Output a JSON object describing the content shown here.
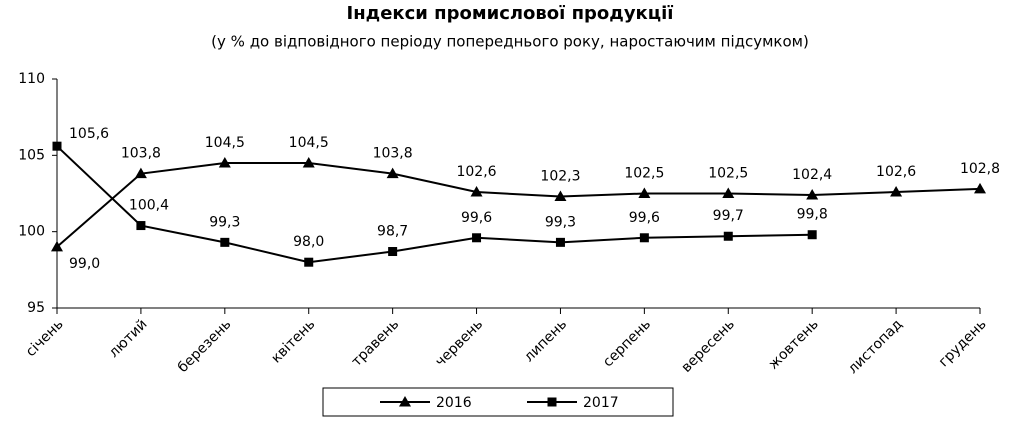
{
  "chart_data": {
    "type": "line",
    "title": "Індекси промислової продукції",
    "subtitle": "(у % до відповідного періоду попереднього року, наростаючим підсумком)",
    "categories": [
      "січень",
      "лютий",
      "березень",
      "квітень",
      "травень",
      "червень",
      "липень",
      "серпень",
      "вересень",
      "жовтень",
      "листопад",
      "грудень"
    ],
    "series": [
      {
        "name": "2016",
        "color": "#000000",
        "marker": "triangle",
        "values": [
          99.0,
          103.8,
          104.5,
          104.5,
          103.8,
          102.6,
          102.3,
          102.5,
          102.5,
          102.4,
          102.6,
          102.8
        ],
        "value_labels": [
          "99,0",
          "103,8",
          "104,5",
          "104,5",
          "103,8",
          "102,6",
          "102,3",
          "102,5",
          "102,5",
          "102,4",
          "102,6",
          "102,8"
        ]
      },
      {
        "name": "2017",
        "color": "#000000",
        "marker": "square",
        "values": [
          105.6,
          100.4,
          99.3,
          98.0,
          98.7,
          99.6,
          99.3,
          99.6,
          99.7,
          99.8,
          null,
          null
        ],
        "value_labels": [
          "105,6",
          "100,4",
          "99,3",
          "98,0",
          "98,7",
          "99,6",
          "99,3",
          "99,6",
          "99,7",
          "99,8",
          null,
          null
        ]
      }
    ],
    "ylim": [
      95,
      110
    ],
    "yticks": [
      95,
      100,
      105,
      110
    ],
    "grid": false,
    "legend": "bottom"
  }
}
